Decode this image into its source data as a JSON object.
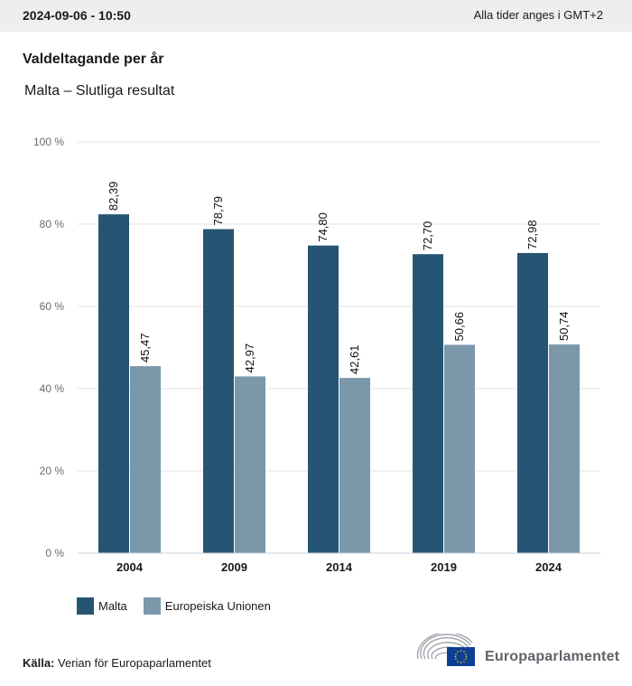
{
  "header": {
    "timestamp": "2024-09-06 - 10:50",
    "timezone_note": "Alla tider anges i GMT+2"
  },
  "colors": {
    "header_bg": "#edeeee",
    "malta": "#265573",
    "eu": "#7b97aa",
    "grid": "#e3e3e3",
    "axis": "#c8d3db",
    "tick_text": "#6b6b6b"
  },
  "chart_data": {
    "type": "bar",
    "title": "Valdeltagande per år",
    "subtitle": "Malta – Slutliga resultat",
    "categories": [
      "2004",
      "2009",
      "2014",
      "2019",
      "2024"
    ],
    "series": [
      {
        "name": "Malta",
        "values": [
          82.39,
          78.79,
          74.8,
          72.7,
          72.98
        ],
        "labels": [
          "82,39",
          "78,79",
          "74,80",
          "72,70",
          "72,98"
        ]
      },
      {
        "name": "Europeiska Unionen",
        "values": [
          45.47,
          42.97,
          42.61,
          50.66,
          50.74
        ],
        "labels": [
          "45,47",
          "42,97",
          "42,61",
          "50,66",
          "50,74"
        ]
      }
    ],
    "ylim": [
      0,
      100
    ],
    "yticks": [
      0,
      20,
      40,
      60,
      80,
      100
    ],
    "ytick_labels": [
      "0 %",
      "20 %",
      "40 %",
      "60 %",
      "80 %",
      "100 %"
    ],
    "xlabel": "",
    "ylabel": "",
    "grid": true,
    "legend_placement": "bottom-left"
  },
  "legend": {
    "items": [
      {
        "label": "Malta"
      },
      {
        "label": "Europeiska Unionen"
      }
    ]
  },
  "footer": {
    "source_label": "Källa:",
    "source_text": " Verian för Europaparlamentet",
    "logo_text": "Europaparlamentet"
  }
}
